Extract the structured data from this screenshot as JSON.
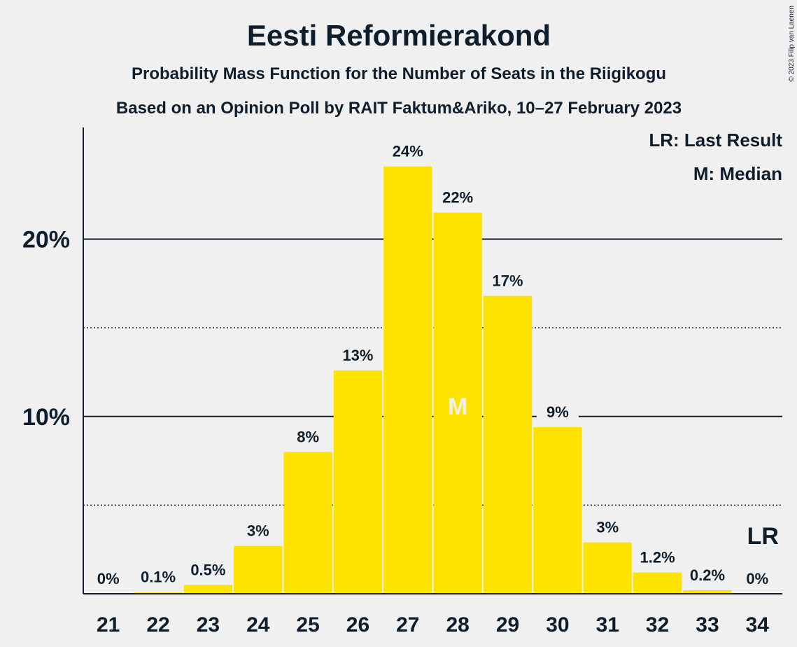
{
  "chart_data": {
    "type": "bar",
    "title": "Eesti Reformierakond",
    "subtitle": "Probability Mass Function for the Number of Seats in the Riigikogu",
    "subtitle2": "Based on an Opinion Poll by RAIT Faktum&Ariko, 10–27 February 2023",
    "copyright": "© 2023 Filip van Laenen",
    "legend": [
      "LR: Last Result",
      "M: Median"
    ],
    "legend_position": "top-right",
    "categories": [
      "21",
      "22",
      "23",
      "24",
      "25",
      "26",
      "27",
      "28",
      "29",
      "30",
      "31",
      "32",
      "33",
      "34"
    ],
    "values": [
      0,
      0.1,
      0.5,
      2.7,
      8.0,
      12.6,
      24.1,
      21.5,
      16.8,
      9.4,
      2.9,
      1.2,
      0.2,
      0
    ],
    "data_labels": [
      "0%",
      "0.1%",
      "0.5%",
      "3%",
      "8%",
      "13%",
      "24%",
      "22%",
      "17%",
      "9%",
      "3%",
      "1.2%",
      "0.2%",
      "0%"
    ],
    "y_ticks": [
      {
        "value": 10,
        "label": "10%"
      },
      {
        "value": 20,
        "label": "20%"
      }
    ],
    "y_minor_gridlines": [
      5,
      15
    ],
    "ylim": [
      0,
      26.3
    ],
    "median_category": "28",
    "median_label": "M",
    "last_result_category": "34",
    "last_result_label": "LR",
    "colors": {
      "bar": "#ffe300",
      "text": "#0f1e2d",
      "background": "#f0f0f0",
      "median_text": "#f0f0f0"
    }
  }
}
